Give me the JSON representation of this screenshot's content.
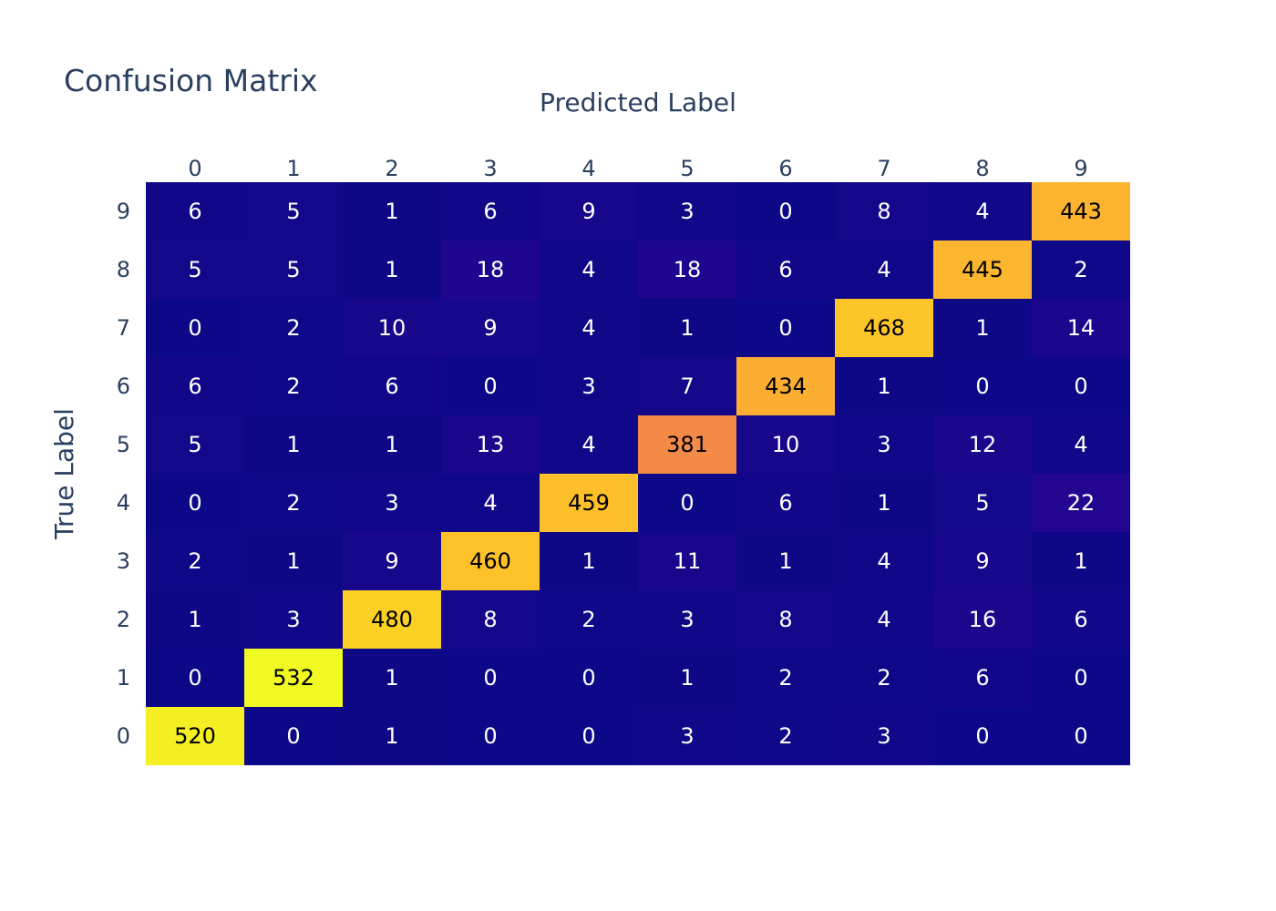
{
  "chart_data": {
    "type": "heatmap",
    "title": "Confusion Matrix",
    "xlabel": "Predicted Label",
    "ylabel": "True Label",
    "x_categories": [
      "0",
      "1",
      "2",
      "3",
      "4",
      "5",
      "6",
      "7",
      "8",
      "9"
    ],
    "y_categories": [
      "0",
      "1",
      "2",
      "3",
      "4",
      "5",
      "6",
      "7",
      "8",
      "9"
    ],
    "x_axis_side": "top",
    "y_order": "0 at bottom, 9 at top",
    "colorscale": "plasma",
    "zlim": [
      0,
      532
    ],
    "show_colorbar": false,
    "values": [
      [
        520,
        0,
        1,
        0,
        0,
        3,
        2,
        3,
        0,
        0
      ],
      [
        0,
        532,
        1,
        0,
        0,
        1,
        2,
        2,
        6,
        0
      ],
      [
        1,
        3,
        480,
        8,
        2,
        3,
        8,
        4,
        16,
        6
      ],
      [
        2,
        1,
        9,
        460,
        1,
        11,
        1,
        4,
        9,
        1
      ],
      [
        0,
        2,
        3,
        4,
        459,
        0,
        6,
        1,
        5,
        22
      ],
      [
        5,
        1,
        1,
        13,
        4,
        381,
        10,
        3,
        12,
        4
      ],
      [
        6,
        2,
        6,
        0,
        3,
        7,
        434,
        1,
        0,
        0
      ],
      [
        0,
        2,
        10,
        9,
        4,
        1,
        0,
        468,
        1,
        14
      ],
      [
        5,
        5,
        1,
        18,
        4,
        18,
        6,
        4,
        445,
        2
      ],
      [
        6,
        5,
        1,
        6,
        9,
        3,
        0,
        8,
        4,
        443
      ]
    ]
  }
}
